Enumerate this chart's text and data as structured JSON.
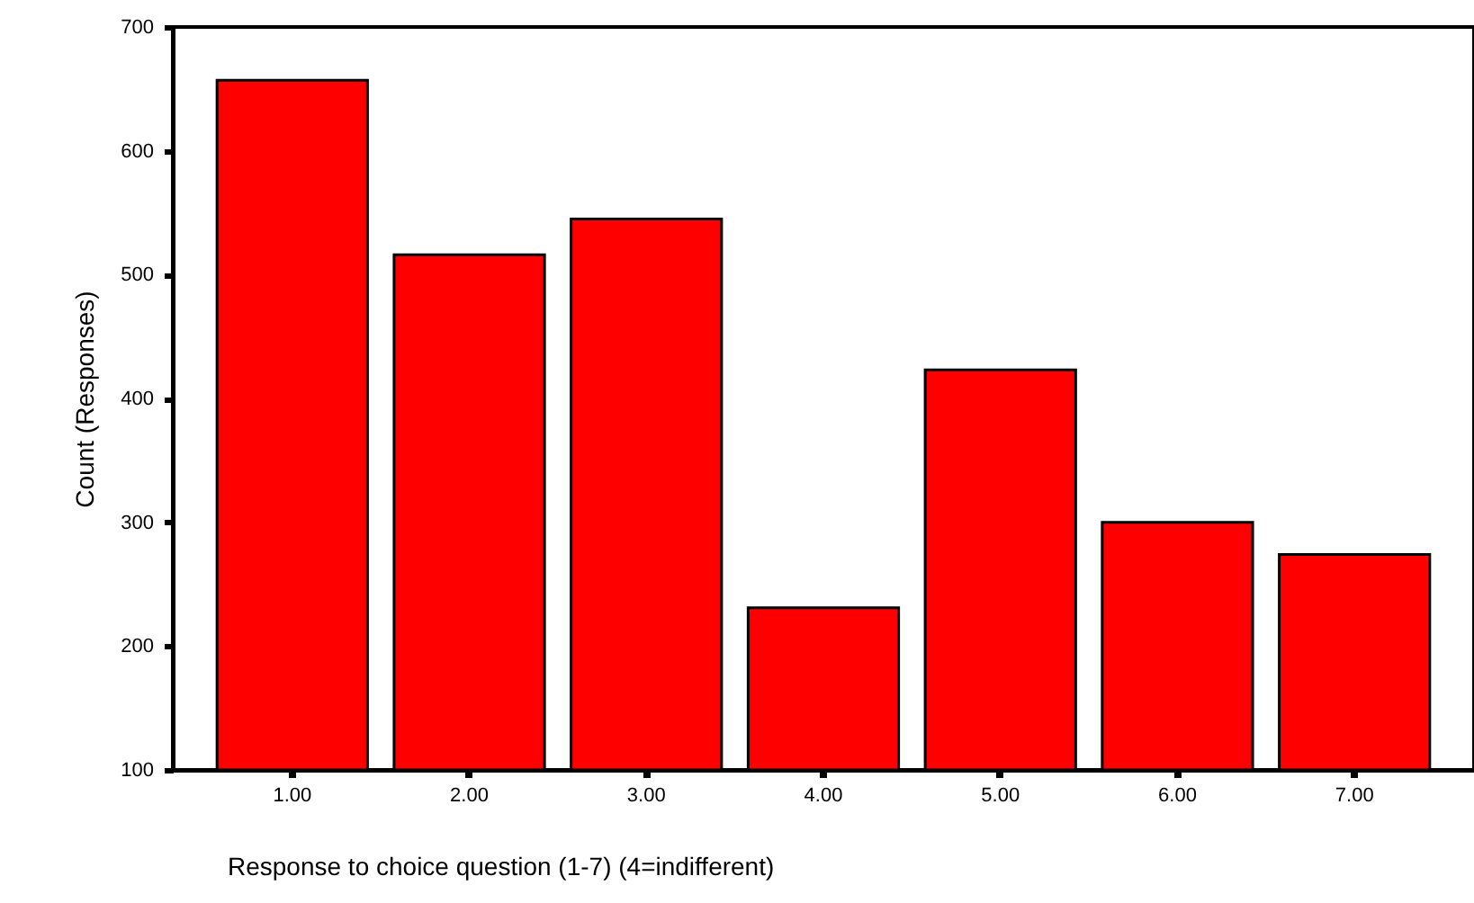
{
  "chart_data": {
    "type": "bar",
    "xlabel": "Response to choice question (1-7) (4=indifferent)",
    "ylabel": "Count (Responses)",
    "categories": [
      "1.00",
      "2.00",
      "3.00",
      "4.00",
      "5.00",
      "6.00",
      "7.00"
    ],
    "values": [
      657,
      516,
      545,
      231,
      423,
      300,
      274
    ],
    "color": "#ff0000",
    "ylim": [
      100,
      700
    ],
    "yticks": [
      100,
      200,
      300,
      400,
      500,
      600,
      700
    ],
    "grid": false
  }
}
